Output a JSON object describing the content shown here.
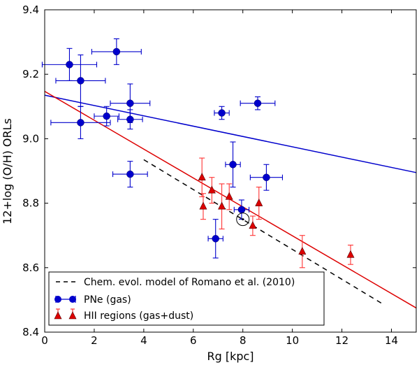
{
  "chart_data": {
    "type": "scatter",
    "xlabel": "Rg [kpc]",
    "ylabel": "12+log (O/H) ORLs",
    "xlim": [
      0,
      15
    ],
    "ylim": [
      8.4,
      9.4
    ],
    "xticks": [
      "0",
      "2",
      "4",
      "6",
      "8",
      "10",
      "12",
      "14"
    ],
    "yticks": [
      "8.4",
      "8.6",
      "8.8",
      "9.0",
      "9.2",
      "9.4"
    ],
    "legend": {
      "position": "lower-left",
      "entries": [
        "Chem. evol. model of Romano et al. (2010)",
        "PNe (gas)",
        "HII regions (gas+dust)"
      ]
    },
    "colors": {
      "pne": "#0000cc",
      "hii": "#dd0000",
      "hii_err": "#ff3333",
      "model": "#000000"
    },
    "series": [
      {
        "name": "PNe (gas)",
        "marker": "circle",
        "points": [
          {
            "x": 1.0,
            "y": 9.23,
            "xerr": 1.1,
            "yerr": 0.05
          },
          {
            "x": 2.9,
            "y": 9.27,
            "xerr": 1.0,
            "yerr": 0.04
          },
          {
            "x": 1.45,
            "y": 9.18,
            "xerr": 1.0,
            "yerr": 0.08
          },
          {
            "x": 3.45,
            "y": 9.11,
            "xerr": 0.8,
            "yerr": 0.06
          },
          {
            "x": 1.45,
            "y": 9.05,
            "xerr": 1.2,
            "yerr": 0.05
          },
          {
            "x": 2.5,
            "y": 9.07,
            "xerr": 0.5,
            "yerr": 0.03
          },
          {
            "x": 3.45,
            "y": 9.06,
            "xerr": 0.5,
            "yerr": 0.03
          },
          {
            "x": 7.15,
            "y": 9.08,
            "xerr": 0.3,
            "yerr": 0.02
          },
          {
            "x": 8.6,
            "y": 9.11,
            "xerr": 0.7,
            "yerr": 0.02
          },
          {
            "x": 3.45,
            "y": 8.89,
            "xerr": 0.7,
            "yerr": 0.04
          },
          {
            "x": 7.6,
            "y": 8.92,
            "xerr": 0.3,
            "yerr": 0.07
          },
          {
            "x": 8.95,
            "y": 8.88,
            "xerr": 0.65,
            "yerr": 0.04
          },
          {
            "x": 7.95,
            "y": 8.78,
            "xerr": 0.3,
            "yerr": 0.03
          },
          {
            "x": 6.9,
            "y": 8.69,
            "xerr": 0.3,
            "yerr": 0.06
          }
        ]
      },
      {
        "name": "HII regions (gas+dust)",
        "marker": "triangle",
        "points": [
          {
            "x": 6.35,
            "y": 8.88,
            "yerr": 0.06
          },
          {
            "x": 6.4,
            "y": 8.79,
            "yerr": 0.04
          },
          {
            "x": 6.75,
            "y": 8.84,
            "yerr": 0.04
          },
          {
            "x": 7.15,
            "y": 8.79,
            "yerr": 0.07
          },
          {
            "x": 7.45,
            "y": 8.82,
            "yerr": 0.04
          },
          {
            "x": 8.4,
            "y": 8.73,
            "yerr": 0.03
          },
          {
            "x": 8.65,
            "y": 8.8,
            "yerr": 0.05
          },
          {
            "x": 10.4,
            "y": 8.65,
            "yerr": 0.05
          },
          {
            "x": 12.35,
            "y": 8.64,
            "yerr": 0.03
          }
        ]
      }
    ],
    "fits": [
      {
        "name": "PNe gradient",
        "color": "#0000cc",
        "x": [
          0,
          15
        ],
        "y": [
          9.135,
          8.895
        ]
      },
      {
        "name": "HII gradient",
        "color": "#dd0000",
        "x": [
          0,
          15
        ],
        "y": [
          9.147,
          8.475
        ]
      }
    ],
    "model": {
      "name": "Chem. evol. model of Romano et al. (2010)",
      "x": [
        4.0,
        13.7
      ],
      "y": [
        8.935,
        8.485
      ]
    },
    "sun": {
      "x": 8.0,
      "y": 8.75
    }
  }
}
